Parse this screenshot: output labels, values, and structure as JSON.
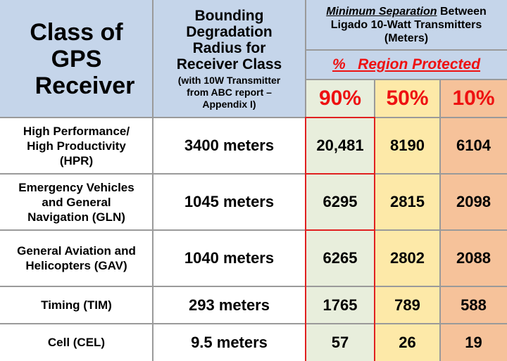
{
  "header": {
    "class_title_lines": [
      "Class of",
      "GPS",
      "Receiver"
    ],
    "radius_title_lines": [
      "Bounding",
      "Degradation",
      "Radius for",
      "Receiver Class"
    ],
    "radius_note_lines": [
      "(with 10W Transmitter",
      "from ABC report –",
      "Appendix I)"
    ],
    "separation_title_italic": "Minimum Separation",
    "separation_title_rest": " Between",
    "separation_title_line2": "Ligado 10-Watt Transmitters",
    "separation_title_line3": "(Meters)",
    "region_protected": "%   Region Protected",
    "percents": [
      "90%",
      "50%",
      "10%"
    ]
  },
  "rows": [
    {
      "label_lines": [
        "High Performance/",
        "High Productivity",
        "(HPR)"
      ],
      "radius": "3400 meters",
      "values": [
        "20,481",
        "8190",
        "6104"
      ]
    },
    {
      "label_lines": [
        "Emergency Vehicles",
        "and General",
        "Navigation (GLN)"
      ],
      "radius": "1045 meters",
      "values": [
        "6295",
        "2815",
        "2098"
      ]
    },
    {
      "label_lines": [
        "General Aviation and",
        "Helicopters (GAV)"
      ],
      "radius": "1040 meters",
      "values": [
        "6265",
        "2802",
        "2088"
      ]
    },
    {
      "label_lines": [
        "Timing (TIM)"
      ],
      "radius": "293 meters",
      "values": [
        "1765",
        "789",
        "588"
      ]
    },
    {
      "label_lines": [
        "Cell (CEL)"
      ],
      "radius": "9.5 meters",
      "values": [
        "57",
        "26",
        "19"
      ]
    }
  ],
  "colors": {
    "header_blue": "#c5d5ea",
    "col90": "#e8eedc",
    "col50": "#fde9a8",
    "col10": "#f6c29a",
    "accent_red": "#ee1111"
  }
}
